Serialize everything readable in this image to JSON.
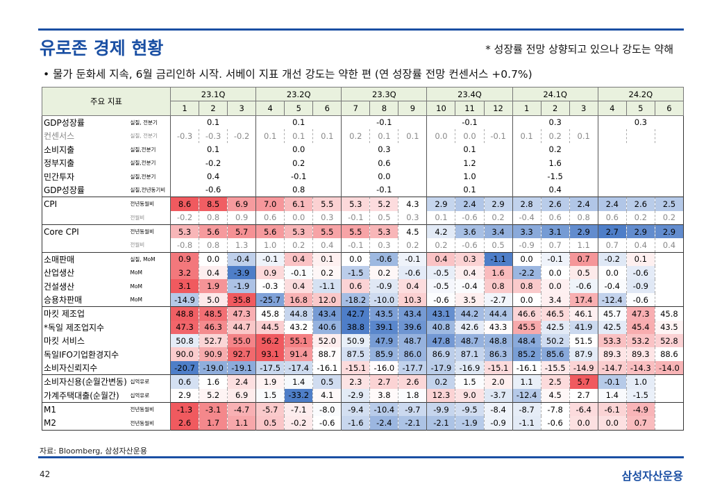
{
  "header": {
    "title": "유로존 경제 현황",
    "note": "* 성장률 전망 상향되고 있으나 강도는 약해",
    "bullet": "• 물가 둔화세 지속, 6월 금리인하 시작. 서베이 지표 개선 강도는 약한 편 (연 성장률 전망 컨센서스 +0.7%)"
  },
  "table": {
    "label": "주요 지표",
    "quarters": [
      "23.1Q",
      "23.2Q",
      "23.3Q",
      "23.4Q",
      "24.1Q",
      "24.2Q"
    ],
    "months": [
      "1",
      "2",
      "3",
      "4",
      "5",
      "6",
      "7",
      "8",
      "9",
      "10",
      "11",
      "12",
      "1",
      "2",
      "3",
      "4",
      "5",
      "6"
    ],
    "groups": [
      [
        {
          "name": "GDP성장률",
          "unit": "실질, 전분기",
          "quarterly": [
            "0.1",
            "0.1",
            "-0.1",
            "-0.1",
            "0.3",
            "0.3"
          ]
        },
        {
          "name": "컨센서스",
          "unit": "실질, 전분기",
          "muted": true,
          "values": [
            "-0.3",
            "-0.3",
            "-0.2",
            "0.1",
            "0.1",
            "0.1",
            "0.2",
            "0.1",
            "0.1",
            "0.0",
            "0.0",
            "-0.1",
            "0.1",
            "0.2",
            "0.1",
            null,
            null,
            null
          ]
        },
        {
          "name": "소비지출",
          "unit": "실질,전분기",
          "quarterly": [
            "0.1",
            "0.0",
            "0.3",
            "0.1",
            "0.2",
            null
          ]
        },
        {
          "name": "정부지출",
          "unit": "실질,전분기",
          "quarterly": [
            "-0.2",
            "0.2",
            "0.6",
            "1.2",
            "1.6",
            null
          ]
        },
        {
          "name": "민간투자",
          "unit": "실질,전분기",
          "quarterly": [
            "0.4",
            "-0.1",
            "0.0",
            "1.0",
            "-1.5",
            null
          ]
        },
        {
          "name": "GDP성장률",
          "unit": "실질,전년동기비",
          "quarterly": [
            "-0.6",
            "0.8",
            "-0.1",
            "0.1",
            "0.4",
            null
          ]
        }
      ],
      [
        {
          "name": "CPI",
          "unit": "전년동월비",
          "heatmap": true,
          "values": [
            "8.6",
            "8.5",
            "6.9",
            "7.0",
            "6.1",
            "5.5",
            "5.3",
            "5.2",
            "4.3",
            "2.9",
            "2.4",
            "2.9",
            "2.8",
            "2.6",
            "2.4",
            "2.4",
            "2.6",
            "2.5"
          ]
        },
        {
          "unit": "전월비",
          "muted": true,
          "values": [
            "-0.2",
            "0.8",
            "0.9",
            "0.6",
            "0.0",
            "0.3",
            "-0.1",
            "0.5",
            "0.3",
            "0.1",
            "-0.6",
            "0.2",
            "-0.4",
            "0.6",
            "0.8",
            "0.6",
            "0.2",
            "0.2"
          ]
        }
      ],
      [
        {
          "name": "Core CPI",
          "unit": "전년동월비",
          "heatmap": true,
          "values": [
            "5.3",
            "5.6",
            "5.7",
            "5.6",
            "5.3",
            "5.5",
            "5.5",
            "5.3",
            "4.5",
            "4.2",
            "3.6",
            "3.4",
            "3.3",
            "3.1",
            "2.9",
            "2.7",
            "2.9",
            "2.9"
          ]
        },
        {
          "unit": "전월비",
          "muted": true,
          "values": [
            "-0.8",
            "0.8",
            "1.3",
            "1.0",
            "0.2",
            "0.4",
            "-0.1",
            "0.3",
            "0.2",
            "0.2",
            "-0.6",
            "0.5",
            "-0.9",
            "0.7",
            "1.1",
            "0.7",
            "0.4",
            "0.4"
          ]
        }
      ],
      [
        {
          "name": "소매판매",
          "unit": "실질, MoM",
          "heatmap": true,
          "values": [
            "0.9",
            "0.0",
            "-0.4",
            "-0.1",
            "0.4",
            "0.1",
            "0.0",
            "-0.6",
            "-0.1",
            "0.4",
            "0.3",
            "-1.1",
            "0.0",
            "-0.1",
            "0.7",
            "-0.2",
            "0.1",
            null
          ]
        },
        {
          "name": "산업생산",
          "unit": "MoM",
          "heatmap": true,
          "values": [
            "3.2",
            "0.4",
            "-3.9",
            "0.9",
            "-0.1",
            "0.2",
            "-1.5",
            "0.2",
            "-0.6",
            "-0.5",
            "0.4",
            "1.6",
            "-2.2",
            "0.0",
            "0.5",
            "0.0",
            "-0.6",
            null
          ]
        },
        {
          "name": "건설생산",
          "unit": "MoM",
          "heatmap": true,
          "values": [
            "3.1",
            "1.9",
            "-1.9",
            "-0.3",
            "0.4",
            "-1.1",
            "0.6",
            "-0.9",
            "0.4",
            "-0.5",
            "-0.4",
            "0.8",
            "0.8",
            "0.0",
            "-0.6",
            "-0.4",
            "-0.9",
            null
          ]
        },
        {
          "name": "승용차판매",
          "unit": "MoM",
          "heatmap": true,
          "values": [
            "-14.9",
            "5.0",
            "35.8",
            "-25.7",
            "16.8",
            "12.0",
            "-18.2",
            "-10.0",
            "10.3",
            "-0.6",
            "3.5",
            "-2.7",
            "0.0",
            "3.4",
            "17.4",
            "-12.4",
            "-0.6",
            null
          ]
        }
      ],
      [
        {
          "name": "마킷 제조업",
          "heatmap": true,
          "values": [
            "48.8",
            "48.5",
            "47.3",
            "45.8",
            "44.8",
            "43.4",
            "42.7",
            "43.5",
            "43.4",
            "43.1",
            "44.2",
            "44.4",
            "46.6",
            "46.5",
            "46.1",
            "45.7",
            "47.3",
            "45.8"
          ]
        },
        {
          "name": "*독일 제조업지수",
          "heatmap": true,
          "values": [
            "47.3",
            "46.3",
            "44.7",
            "44.5",
            "43.2",
            "40.6",
            "38.8",
            "39.1",
            "39.6",
            "40.8",
            "42.6",
            "43.3",
            "45.5",
            "42.5",
            "41.9",
            "42.5",
            "45.4",
            "43.5"
          ]
        },
        {
          "name": "마킷 서비스",
          "heatmap": true,
          "values": [
            "50.8",
            "52.7",
            "55.0",
            "56.2",
            "55.1",
            "52.0",
            "50.9",
            "47.9",
            "48.7",
            "47.8",
            "48.7",
            "48.8",
            "48.4",
            "50.2",
            "51.5",
            "53.3",
            "53.2",
            "52.8"
          ]
        },
        {
          "name": "독일IFO기업환경지수",
          "heatmap": true,
          "values": [
            "90.0",
            "90.9",
            "92.7",
            "93.1",
            "91.4",
            "88.7",
            "87.5",
            "85.9",
            "86.0",
            "86.9",
            "87.1",
            "86.3",
            "85.2",
            "85.6",
            "87.9",
            "89.3",
            "89.3",
            "88.6"
          ]
        },
        {
          "name": "소비자신뢰지수",
          "heatmap": true,
          "values": [
            "-20.7",
            "-19.0",
            "-19.1",
            "-17.5",
            "-17.4",
            "-16.1",
            "-15.1",
            "-16.0",
            "-17.7",
            "-17.9",
            "-16.9",
            "-15.1",
            "-16.1",
            "-15.5",
            "-14.9",
            "-14.7",
            "-14.3",
            "-14.0"
          ]
        }
      ],
      [
        {
          "name": "소비자신용(순월간변동)",
          "unit": "십억유로",
          "heatmap": true,
          "values": [
            "0.6",
            "1.6",
            "2.4",
            "1.9",
            "1.4",
            "0.5",
            "2.3",
            "2.7",
            "2.6",
            "0.2",
            "1.5",
            "2.0",
            "1.1",
            "2.5",
            "5.7",
            "-0.1",
            "1.0",
            null
          ]
        },
        {
          "name": "가계주택대출(순월간)",
          "unit": "십억유로",
          "heatmap": true,
          "values": [
            "2.9",
            "5.2",
            "6.9",
            "1.5",
            "-33.2",
            "4.1",
            "-2.9",
            "3.8",
            "1.8",
            "12.3",
            "9.0",
            "-3.7",
            "-12.4",
            "4.5",
            "2.7",
            "1.4",
            "-1.5",
            null
          ]
        }
      ],
      [
        {
          "name": "M1",
          "unit": "전년동월비",
          "heatmap": true,
          "values": [
            "-1.3",
            "-3.1",
            "-4.7",
            "-5.7",
            "-7.1",
            "-8.0",
            "-9.4",
            "-10.4",
            "-9.7",
            "-9.9",
            "-9.5",
            "-8.4",
            "-8.7",
            "-7.8",
            "-6.4",
            "-6.1",
            "-4.9",
            null
          ]
        },
        {
          "name": "M2",
          "unit": "전년동월비",
          "heatmap": true,
          "values": [
            "2.6",
            "1.7",
            "1.1",
            "0.5",
            "-0.2",
            "-0.6",
            "-1.6",
            "-2.4",
            "-2.1",
            "-2.1",
            "-1.9",
            "-0.9",
            "-1.1",
            "-0.6",
            "0.0",
            "0.0",
            "0.7",
            null
          ]
        }
      ]
    ]
  },
  "footer": {
    "source": "자료: Bloomberg, 삼성자산운용",
    "page": "42",
    "brand": "삼성자산운용"
  }
}
